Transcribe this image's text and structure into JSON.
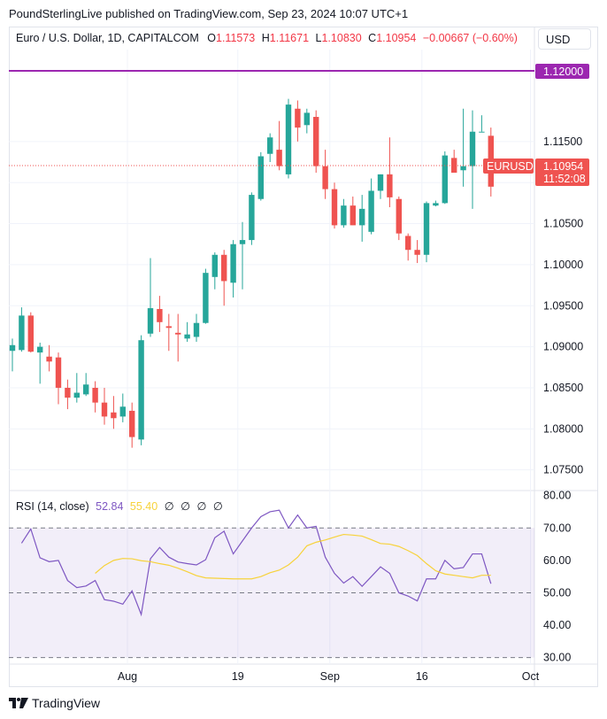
{
  "header": {
    "publisher_text": "PoundSterlingLive published on TradingView.com, Sep 23, 2024 10:07 UTC+1"
  },
  "legend": {
    "symbol": "Euro / U.S. Dollar, 1D, CAPITALCOM",
    "o_label": "O",
    "o_value": "1.11573",
    "h_label": "H",
    "h_value": "1.11671",
    "l_label": "L",
    "l_value": "1.10830",
    "c_label": "C",
    "c_value": "1.10954",
    "change": "−0.00667 (−0.60%)"
  },
  "currency_button": "USD",
  "price_labels": {
    "resistance": "1.12000",
    "ticker": "EURUSD",
    "last_price": "1.10954",
    "countdown": "11:52:08"
  },
  "rsi_legend": {
    "title": "RSI (14, close)",
    "rsi_value": "52.84",
    "ma_value": "55.40",
    "extras": [
      "∅",
      "∅",
      "∅",
      "∅"
    ]
  },
  "footer": {
    "brand": "TradingView"
  },
  "colors": {
    "up": "#26a69a",
    "down": "#ef5350",
    "rsi_line": "#7e57c2",
    "rsi_ma": "#f7d23a",
    "resistance": "#9c27b0"
  },
  "chart_data": [
    {
      "type": "candlestick",
      "title": "Euro / U.S. Dollar, 1D, CAPITALCOM",
      "y_ticks": [
        1.075,
        1.08,
        1.085,
        1.09,
        1.095,
        1.1,
        1.105,
        1.11,
        1.115
      ],
      "y_tick_labels": [
        "1.07500",
        "1.08000",
        "1.08500",
        "1.09000",
        "1.09500",
        "1.10000",
        "1.10500",
        "",
        "1.11500"
      ],
      "x_tick_labels": [
        "Aug",
        "19",
        "Sep",
        "16",
        "Oct"
      ],
      "ylim": [
        1.0727,
        1.1262
      ],
      "horizontal_line": 1.12,
      "last_price": 1.10954,
      "candles": [
        {
          "o": 1.0895,
          "h": 1.091,
          "l": 1.087,
          "c": 1.0902
        },
        {
          "o": 1.0896,
          "h": 1.0948,
          "l": 1.0894,
          "c": 1.0938
        },
        {
          "o": 1.0938,
          "h": 1.0942,
          "l": 1.0893,
          "c": 1.0894
        },
        {
          "o": 1.0893,
          "h": 1.0905,
          "l": 1.0855,
          "c": 1.09
        },
        {
          "o": 1.0888,
          "h": 1.0902,
          "l": 1.087,
          "c": 1.0882
        },
        {
          "o": 1.0887,
          "h": 1.0893,
          "l": 1.083,
          "c": 1.085
        },
        {
          "o": 1.085,
          "h": 1.086,
          "l": 1.0824,
          "c": 1.0838
        },
        {
          "o": 1.0838,
          "h": 1.0868,
          "l": 1.0832,
          "c": 1.0844
        },
        {
          "o": 1.0842,
          "h": 1.0868,
          "l": 1.084,
          "c": 1.0854
        },
        {
          "o": 1.085,
          "h": 1.0858,
          "l": 1.082,
          "c": 1.0832
        },
        {
          "o": 1.0832,
          "h": 1.085,
          "l": 1.0805,
          "c": 1.0815
        },
        {
          "o": 1.082,
          "h": 1.084,
          "l": 1.08,
          "c": 1.0813
        },
        {
          "o": 1.0815,
          "h": 1.0843,
          "l": 1.0808,
          "c": 1.0827
        },
        {
          "o": 1.0822,
          "h": 1.0832,
          "l": 1.0777,
          "c": 1.079
        },
        {
          "o": 1.0787,
          "h": 1.0914,
          "l": 1.078,
          "c": 1.0908
        },
        {
          "o": 1.0916,
          "h": 1.1008,
          "l": 1.0912,
          "c": 1.0947
        },
        {
          "o": 1.0946,
          "h": 1.0962,
          "l": 1.0918,
          "c": 1.093
        },
        {
          "o": 1.0925,
          "h": 1.094,
          "l": 1.0895,
          "c": 1.0923
        },
        {
          "o": 1.0917,
          "h": 1.094,
          "l": 1.0882,
          "c": 1.0915
        },
        {
          "o": 1.091,
          "h": 1.093,
          "l": 1.0906,
          "c": 1.0915
        },
        {
          "o": 1.0912,
          "h": 1.094,
          "l": 1.0906,
          "c": 1.0929
        },
        {
          "o": 1.0929,
          "h": 1.0995,
          "l": 1.0928,
          "c": 1.099
        },
        {
          "o": 1.0985,
          "h": 1.1015,
          "l": 1.097,
          "c": 1.1012
        },
        {
          "o": 1.1012,
          "h": 1.1018,
          "l": 1.095,
          "c": 1.098
        },
        {
          "o": 1.0978,
          "h": 1.103,
          "l": 1.096,
          "c": 1.1025
        },
        {
          "o": 1.1025,
          "h": 1.1052,
          "l": 1.097,
          "c": 1.103
        },
        {
          "o": 1.103,
          "h": 1.1088,
          "l": 1.1024,
          "c": 1.1085
        },
        {
          "o": 1.108,
          "h": 1.1137,
          "l": 1.1078,
          "c": 1.1132
        },
        {
          "o": 1.1135,
          "h": 1.116,
          "l": 1.1125,
          "c": 1.1155
        },
        {
          "o": 1.114,
          "h": 1.1175,
          "l": 1.1115,
          "c": 1.112
        },
        {
          "o": 1.111,
          "h": 1.1202,
          "l": 1.1105,
          "c": 1.1195
        },
        {
          "o": 1.119,
          "h": 1.12,
          "l": 1.115,
          "c": 1.1167
        },
        {
          "o": 1.117,
          "h": 1.119,
          "l": 1.116,
          "c": 1.1185
        },
        {
          "o": 1.118,
          "h": 1.1188,
          "l": 1.1112,
          "c": 1.112
        },
        {
          "o": 1.112,
          "h": 1.114,
          "l": 1.108,
          "c": 1.1092
        },
        {
          "o": 1.1092,
          "h": 1.11,
          "l": 1.1044,
          "c": 1.1048
        },
        {
          "o": 1.1048,
          "h": 1.108,
          "l": 1.1045,
          "c": 1.1072
        },
        {
          "o": 1.1072,
          "h": 1.1083,
          "l": 1.1048,
          "c": 1.1048
        },
        {
          "o": 1.1048,
          "h": 1.1085,
          "l": 1.1028,
          "c": 1.1068
        },
        {
          "o": 1.104,
          "h": 1.1105,
          "l": 1.1037,
          "c": 1.109
        },
        {
          "o": 1.109,
          "h": 1.111,
          "l": 1.108,
          "c": 1.111
        },
        {
          "o": 1.111,
          "h": 1.1155,
          "l": 1.107,
          "c": 1.1082
        },
        {
          "o": 1.108,
          "h": 1.1083,
          "l": 1.103,
          "c": 1.1038
        },
        {
          "o": 1.1035,
          "h": 1.1038,
          "l": 1.1005,
          "c": 1.1018
        },
        {
          "o": 1.1018,
          "h": 1.103,
          "l": 1.1002,
          "c": 1.1012
        },
        {
          "o": 1.1012,
          "h": 1.1077,
          "l": 1.1003,
          "c": 1.1075
        },
        {
          "o": 1.1072,
          "h": 1.1078,
          "l": 1.1071,
          "c": 1.1075
        },
        {
          "o": 1.1075,
          "h": 1.1138,
          "l": 1.1074,
          "c": 1.1133
        },
        {
          "o": 1.113,
          "h": 1.114,
          "l": 1.1115,
          "c": 1.1112
        },
        {
          "o": 1.1115,
          "h": 1.119,
          "l": 1.1095,
          "c": 1.112
        },
        {
          "o": 1.112,
          "h": 1.1188,
          "l": 1.1068,
          "c": 1.1162
        },
        {
          "o": 1.1162,
          "h": 1.1182,
          "l": 1.1162,
          "c": 1.1162
        },
        {
          "o": 1.1157,
          "h": 1.1167,
          "l": 1.1083,
          "c": 1.1095
        }
      ]
    },
    {
      "type": "line",
      "title": "RSI (14, close)",
      "ylim": [
        28,
        81
      ],
      "y_ticks": [
        30,
        40,
        50,
        60,
        70,
        80
      ],
      "y_tick_labels": [
        "30.00",
        "40.00",
        "50.00",
        "60.00",
        "70.00",
        "80.00"
      ],
      "bands": {
        "upper": 70,
        "middle": 50,
        "lower": 30
      },
      "series": [
        {
          "name": "RSI",
          "values": [
            65.3,
            69.7,
            60.8,
            59.6,
            60.0,
            53.8,
            51.6,
            52.1,
            53.8,
            47.9,
            47.4,
            46.5,
            50.6,
            43.3,
            60.5,
            64.0,
            61.0,
            59.5,
            59.0,
            58.6,
            60.2,
            67.0,
            69.0,
            62.0,
            66.0,
            70.0,
            73.5,
            75.0,
            75.5,
            70.0,
            74.0,
            70.0,
            70.5,
            61.0,
            56.0,
            53.0,
            55.0,
            52.0,
            55.0,
            58.0,
            56.0,
            50.0,
            49.0,
            47.5,
            54.3,
            54.3,
            60.0,
            57.4,
            57.8,
            62.0,
            62.0,
            52.8
          ]
        },
        {
          "name": "RSI-based MA",
          "values": [
            56.0,
            58.4,
            60.0,
            60.6,
            60.5,
            59.9,
            59.6,
            59.0,
            58.5,
            57.6,
            56.5,
            55.3,
            54.6,
            54.5,
            54.4,
            54.3,
            54.3,
            54.3,
            55.0,
            56.2,
            57.0,
            58.6,
            61.0,
            64.5,
            65.6,
            66.3,
            67.2,
            68.0,
            67.8,
            67.5,
            66.4,
            65.2,
            65.0,
            64.3,
            63.0,
            61.5,
            59.0,
            56.8,
            55.8,
            55.4,
            55.0,
            54.6,
            55.4,
            55.4
          ]
        }
      ]
    }
  ]
}
